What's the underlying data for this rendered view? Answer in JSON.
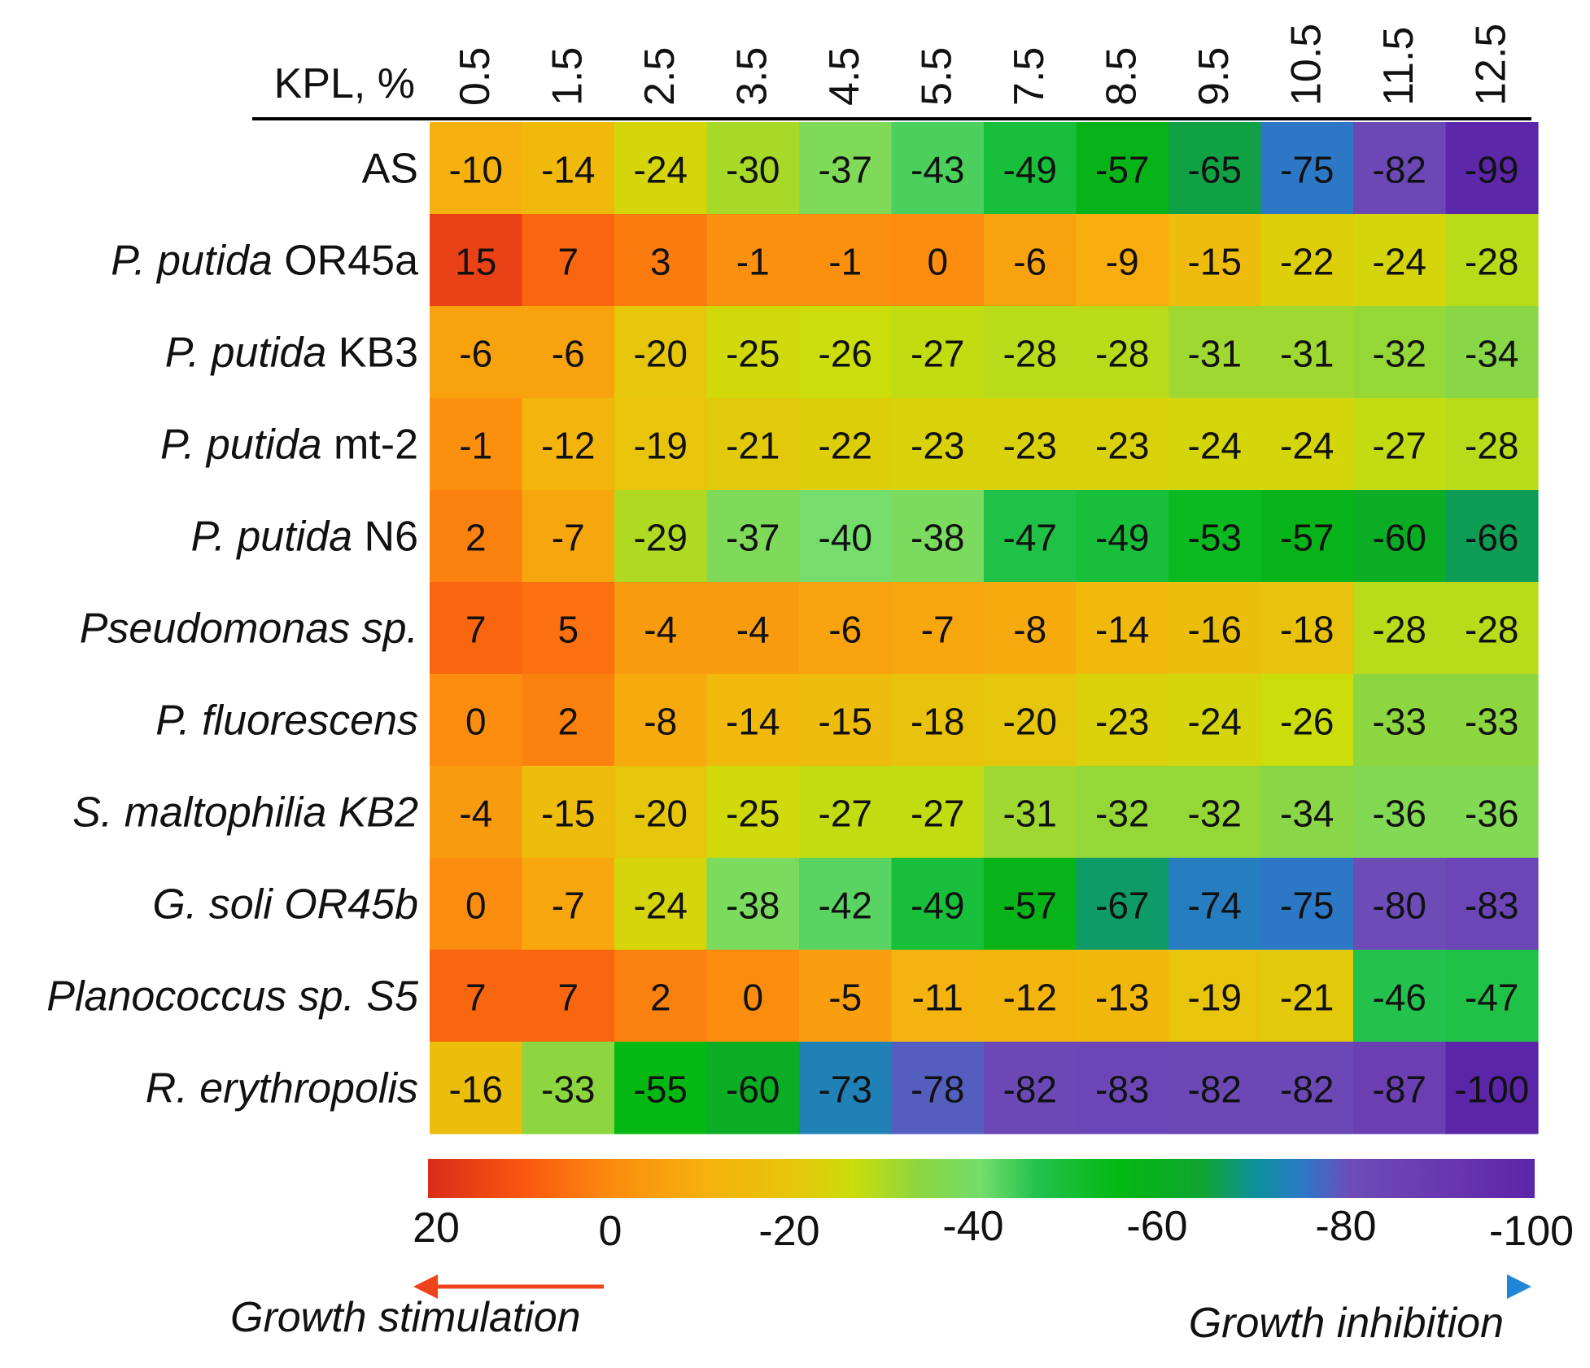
{
  "chart_data": {
    "type": "heatmap",
    "title": "",
    "xlabel": "KPL, %",
    "ylabel": "",
    "columns": [
      "0.5",
      "1.5",
      "2.5",
      "3.5",
      "4.5",
      "5.5",
      "7.5",
      "8.5",
      "9.5",
      "10.5",
      "11.5",
      "12.5"
    ],
    "rows": [
      {
        "label": "AS",
        "italic": false,
        "values": [
          -10,
          -14,
          -24,
          -30,
          -37,
          -43,
          -49,
          -57,
          -65,
          -75,
          -82,
          -99
        ]
      },
      {
        "label": "P. putida OR45a",
        "italic_part": "P. putida",
        "plain_part": " OR45a",
        "values": [
          15,
          7,
          3,
          -1,
          -1,
          0,
          -6,
          -9,
          -15,
          -22,
          -24,
          -28
        ]
      },
      {
        "label": "P. putida KB3",
        "italic_part": "P. putida",
        "plain_part": " KB3",
        "values": [
          -6,
          -6,
          -20,
          -25,
          -26,
          -27,
          -28,
          -28,
          -31,
          -31,
          -32,
          -34
        ]
      },
      {
        "label": "P. putida mt-2",
        "italic_part": "P. putida",
        "plain_part": " mt-2",
        "values": [
          -1,
          -12,
          -19,
          -21,
          -22,
          -23,
          -23,
          -23,
          -24,
          -24,
          -27,
          -28
        ]
      },
      {
        "label": "P. putida N6",
        "italic_part": "P. putida",
        "plain_part": " N6",
        "values": [
          2,
          -7,
          -29,
          -37,
          -40,
          -38,
          -47,
          -49,
          -53,
          -57,
          -60,
          -66
        ]
      },
      {
        "label": "Pseudomonas sp.",
        "italic_part": "Pseudomonas sp.",
        "plain_part": "",
        "values": [
          7,
          5,
          -4,
          -4,
          -6,
          -7,
          -8,
          -14,
          -16,
          -18,
          -28,
          -28
        ]
      },
      {
        "label": "P. fluorescens",
        "italic_part": "P. fluorescens",
        "plain_part": "",
        "values": [
          0,
          2,
          -8,
          -14,
          -15,
          -18,
          -20,
          -23,
          -24,
          -26,
          -33,
          -33
        ]
      },
      {
        "label": "S. maltophilia KB2",
        "italic_part": "S. maltophilia KB2",
        "plain_part": "",
        "values": [
          -4,
          -15,
          -20,
          -25,
          -27,
          -27,
          -31,
          -32,
          -32,
          -34,
          -36,
          -36
        ]
      },
      {
        "label": "G. soli OR45b",
        "italic_part": "G. soli OR45b",
        "plain_part": "",
        "values": [
          0,
          -7,
          -24,
          -38,
          -42,
          -49,
          -57,
          -67,
          -74,
          -75,
          -80,
          -83
        ]
      },
      {
        "label": "Planococcus sp. S5",
        "italic_part": "Planococcus sp. S5",
        "plain_part": "",
        "values": [
          7,
          7,
          2,
          0,
          -5,
          -11,
          -12,
          -13,
          -19,
          -21,
          -46,
          -47
        ]
      },
      {
        "label": "R. erythropolis",
        "italic_part": "R. erythropolis",
        "plain_part": "",
        "values": [
          -16,
          -33,
          -55,
          -60,
          -73,
          -78,
          -82,
          -83,
          -82,
          -82,
          -87,
          -100
        ]
      }
    ],
    "colorbar": {
      "range": [
        20,
        -100
      ],
      "ticks": [
        "20",
        "0",
        "-20",
        "-40",
        "-60",
        "-80",
        "-100"
      ],
      "stops": [
        {
          "value": 20,
          "color": "#d92d1a"
        },
        {
          "value": 10,
          "color": "#fa5411"
        },
        {
          "value": 0,
          "color": "#fb8c0e"
        },
        {
          "value": -10,
          "color": "#f6b10e"
        },
        {
          "value": -20,
          "color": "#e6c60a"
        },
        {
          "value": -26,
          "color": "#cbdd0a"
        },
        {
          "value": -33,
          "color": "#8dd640"
        },
        {
          "value": -40,
          "color": "#74dd6c"
        },
        {
          "value": -46,
          "color": "#22c24d"
        },
        {
          "value": -55,
          "color": "#03b813"
        },
        {
          "value": -64,
          "color": "#0fa431"
        },
        {
          "value": -70,
          "color": "#0f8fa0"
        },
        {
          "value": -75,
          "color": "#2c78c7"
        },
        {
          "value": -80,
          "color": "#6d4cb8"
        },
        {
          "value": -90,
          "color": "#6a38b0"
        },
        {
          "value": -100,
          "color": "#5b25a8"
        }
      ]
    },
    "annotations": {
      "left_arrow_label": "Growth stimulation",
      "right_arrow_label": "Growth inhibition"
    }
  },
  "colors": {
    "text": "#111111",
    "header_rule": "#000000",
    "stim_arrow": "#f0421c",
    "inhibit_arrow_start": "#fcd26a",
    "inhibit_arrow_mid": "#f09a3a",
    "inhibit_arrow_mid2": "#1fb050",
    "inhibit_arrow_end": "#1f86d8"
  }
}
